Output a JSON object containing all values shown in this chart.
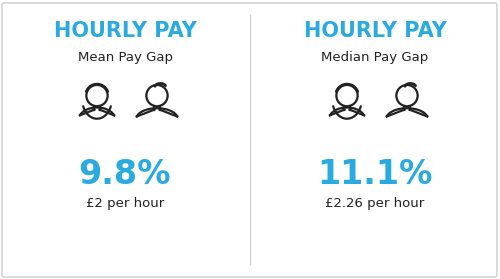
{
  "bg_color": "#ffffff",
  "border_color": "#cccccc",
  "cyan_color": "#29ABE2",
  "dark_color": "#1a1a2e",
  "left_title": "HOURLY PAY",
  "right_title": "HOURLY PAY",
  "left_subtitle": "Mean Pay Gap",
  "right_subtitle": "Median Pay Gap",
  "left_pct": "9.8%",
  "right_pct": "11.1%",
  "left_detail": "£2 per hour",
  "right_detail": "£2.26 per hour",
  "title_fontsize": 15,
  "subtitle_fontsize": 9.5,
  "pct_fontsize": 24,
  "detail_fontsize": 9.5,
  "icon_color": "#222222",
  "icon_lw": 1.6
}
